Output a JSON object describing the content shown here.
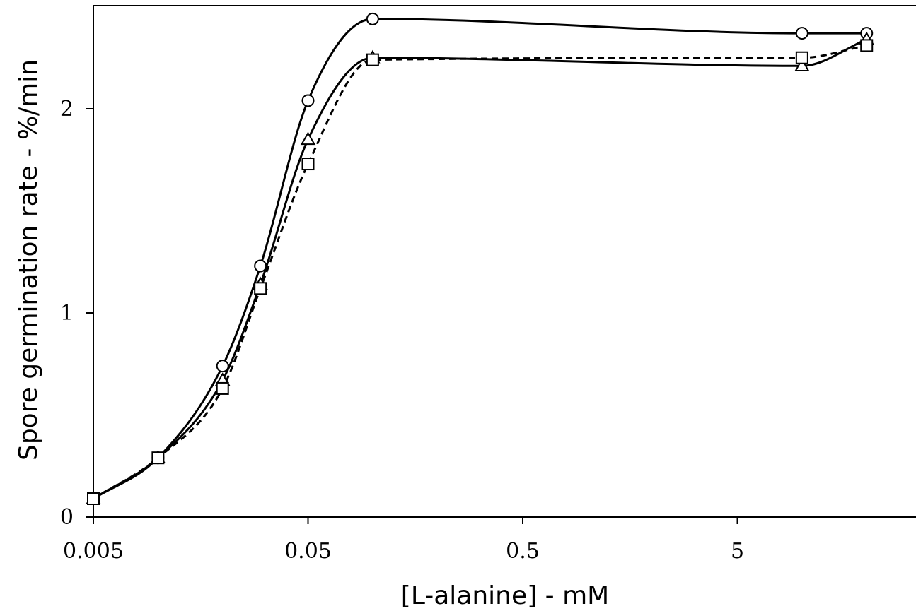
{
  "chart_data": {
    "type": "line",
    "xlabel": "[L-alanine] - mM",
    "ylabel": "Spore germination rate - %/min",
    "x_scale": "log",
    "xlim": [
      0.005,
      20
    ],
    "ylim": [
      0,
      2.5
    ],
    "x_ticks": [
      0.005,
      0.05,
      0.5,
      5
    ],
    "x_tick_labels": [
      "0.005",
      "0.05",
      "0.5",
      "5"
    ],
    "y_ticks": [
      0,
      1,
      2
    ],
    "y_tick_labels": [
      "0",
      "1",
      "2"
    ],
    "legend": "none",
    "grid": false,
    "series": [
      {
        "marker": "circle",
        "line_style": "solid",
        "x": [
          0.005,
          0.01,
          0.02,
          0.03,
          0.05,
          0.1,
          10,
          20
        ],
        "y": [
          0.09,
          0.29,
          0.74,
          1.23,
          2.04,
          2.44,
          2.37,
          2.37
        ]
      },
      {
        "marker": "triangle",
        "line_style": "solid",
        "x": [
          0.005,
          0.01,
          0.02,
          0.03,
          0.05,
          0.1,
          10,
          20
        ],
        "y": [
          0.09,
          0.29,
          0.67,
          1.14,
          1.85,
          2.25,
          2.21,
          2.34
        ]
      },
      {
        "marker": "square",
        "line_style": "dashed",
        "x": [
          0.005,
          0.01,
          0.02,
          0.03,
          0.05,
          0.1,
          10,
          20
        ],
        "y": [
          0.09,
          0.29,
          0.63,
          1.12,
          1.73,
          2.24,
          2.25,
          2.31
        ]
      }
    ]
  }
}
